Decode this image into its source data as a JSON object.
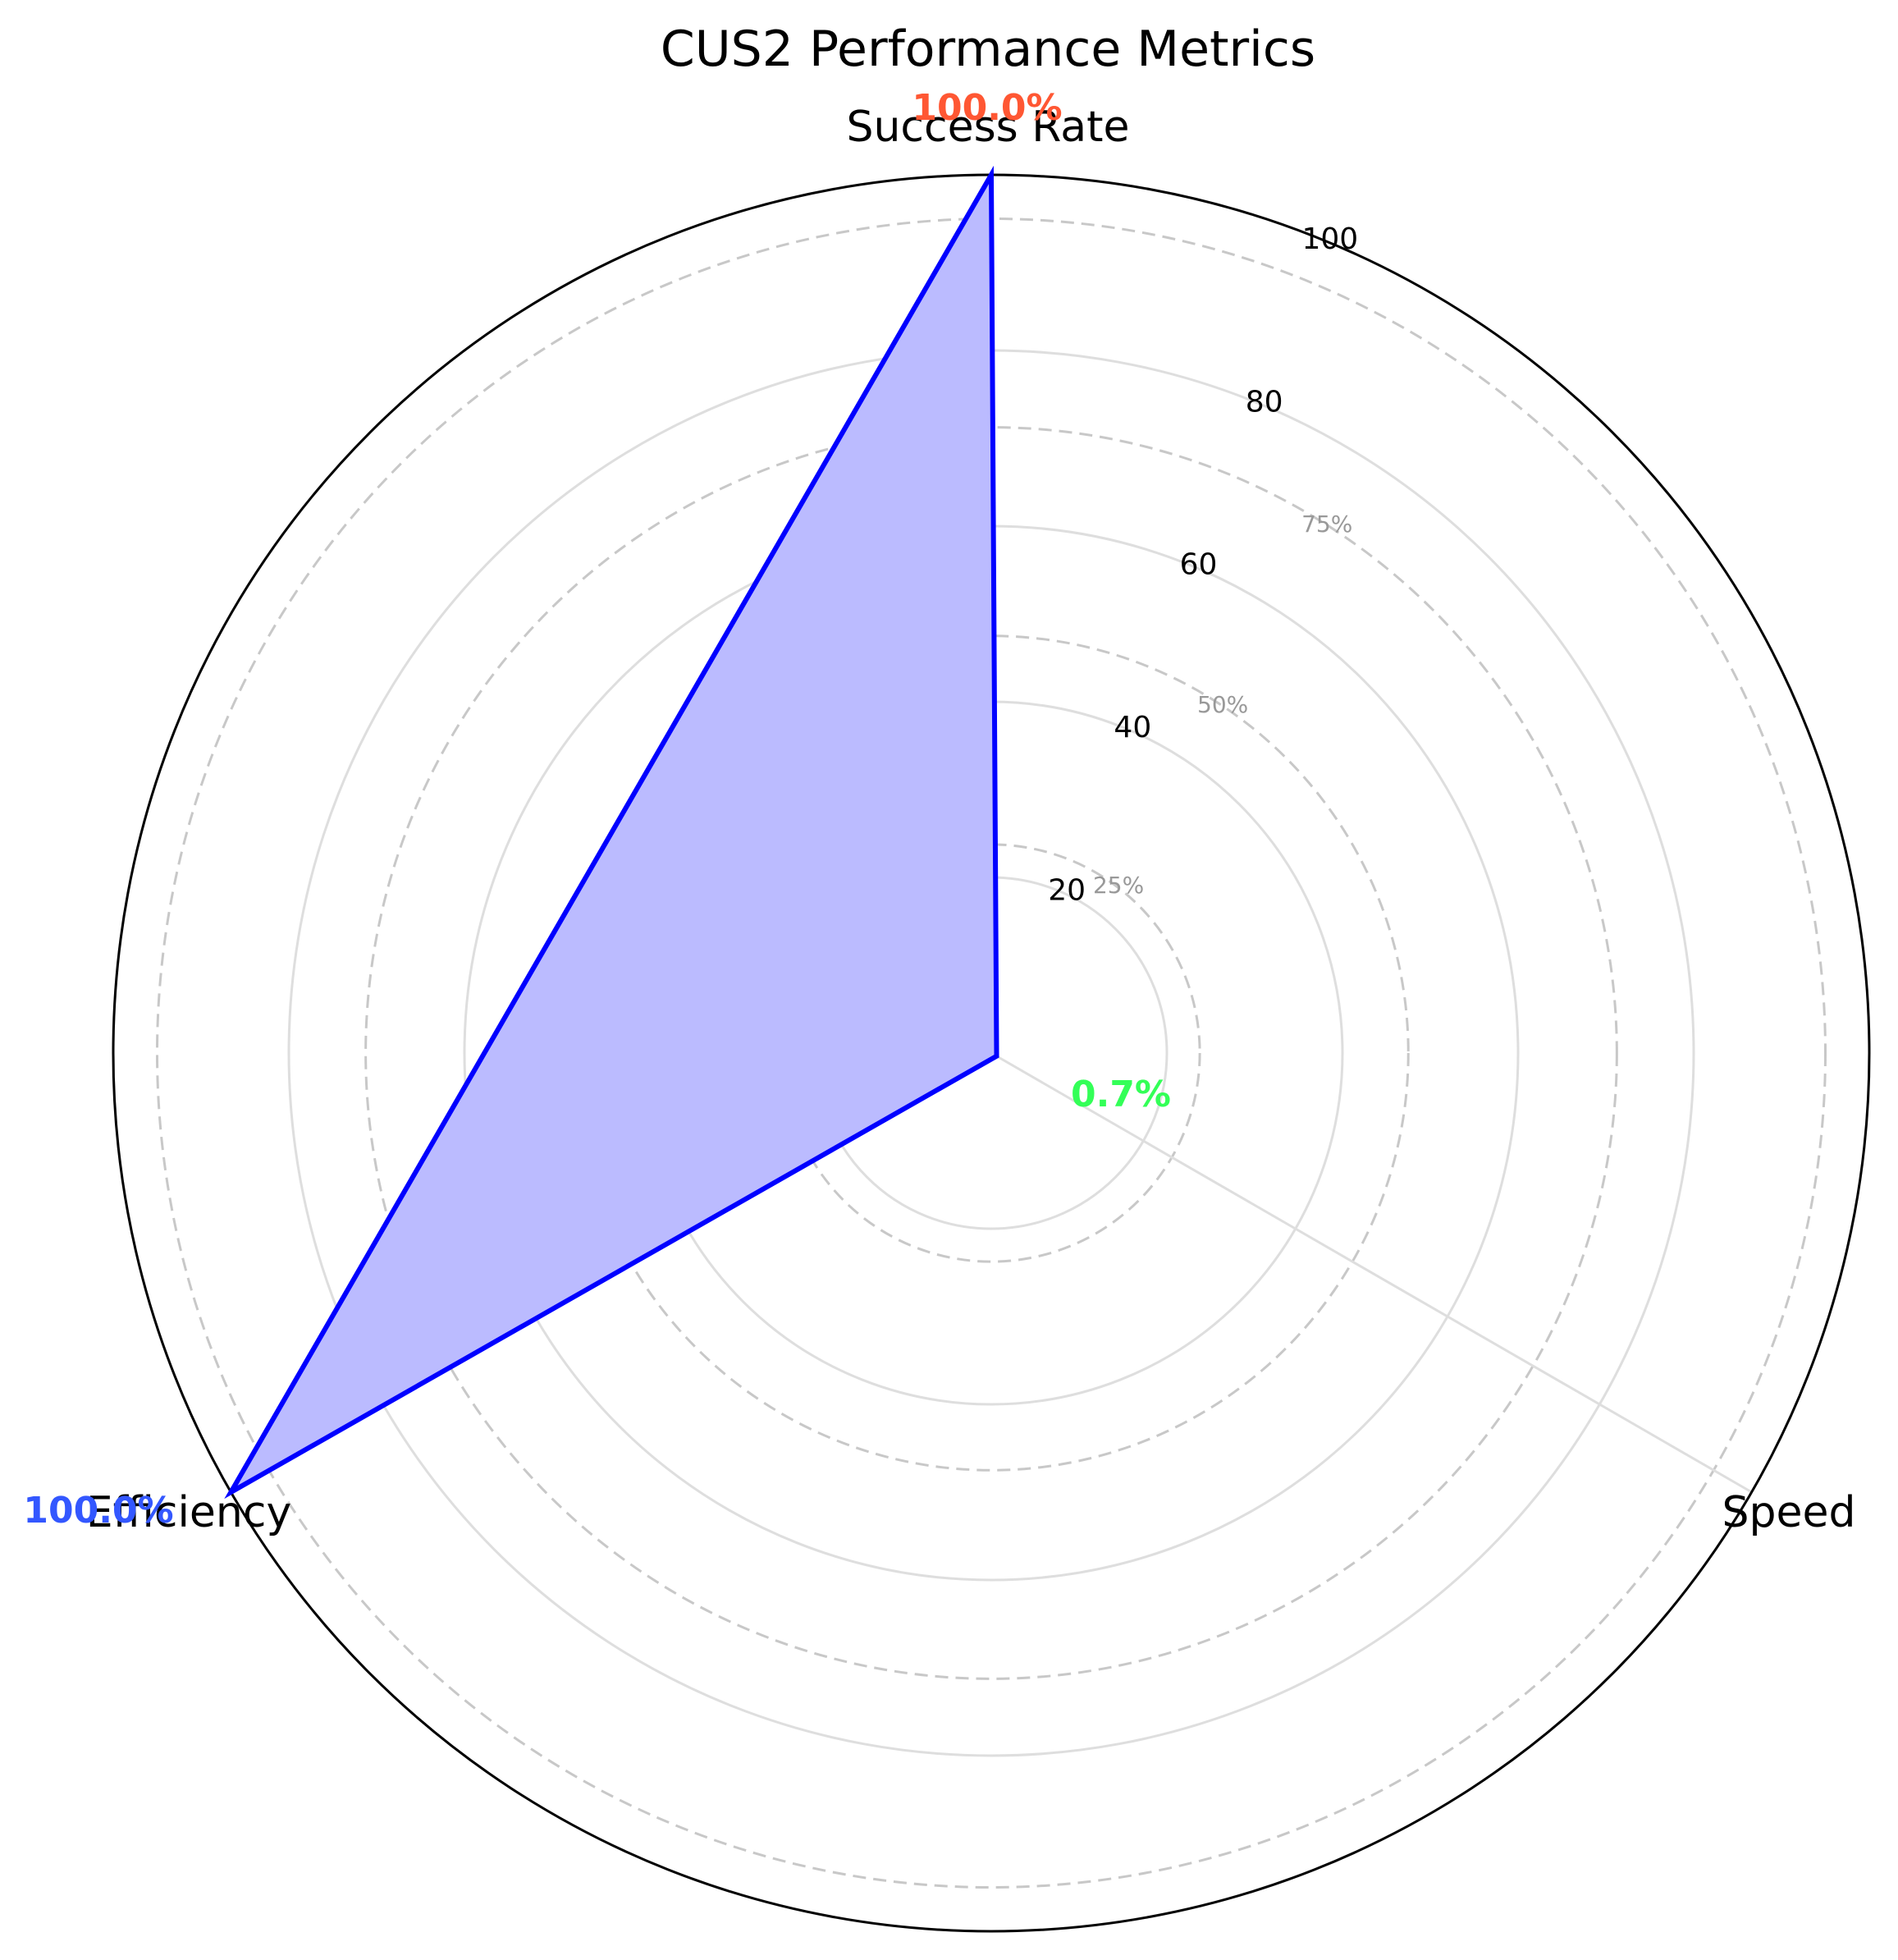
{
  "chart_data": {
    "type": "radar",
    "title": "CUS2 Performance Metrics",
    "categories": [
      "Success Rate",
      "Speed",
      "Efficiency"
    ],
    "values": [
      100.0,
      0.7,
      100.0
    ],
    "value_labels": [
      "100.0%",
      "0.7%",
      "100.0%"
    ],
    "value_label_colors": [
      "#ff5733",
      "#33ff57",
      "#3357ff"
    ],
    "rlim": [
      0,
      100
    ],
    "radial_ticks": [
      20,
      40,
      60,
      80,
      100
    ],
    "radial_tick_labels": [
      "20",
      "40",
      "60",
      "80",
      "100"
    ],
    "reference_rings": [
      25,
      50,
      75,
      100
    ],
    "reference_ring_labels": [
      "25%",
      "50%",
      "75%"
    ],
    "series_color": "#0000ff",
    "fill_color": "#bbbbff",
    "grid": true
  }
}
